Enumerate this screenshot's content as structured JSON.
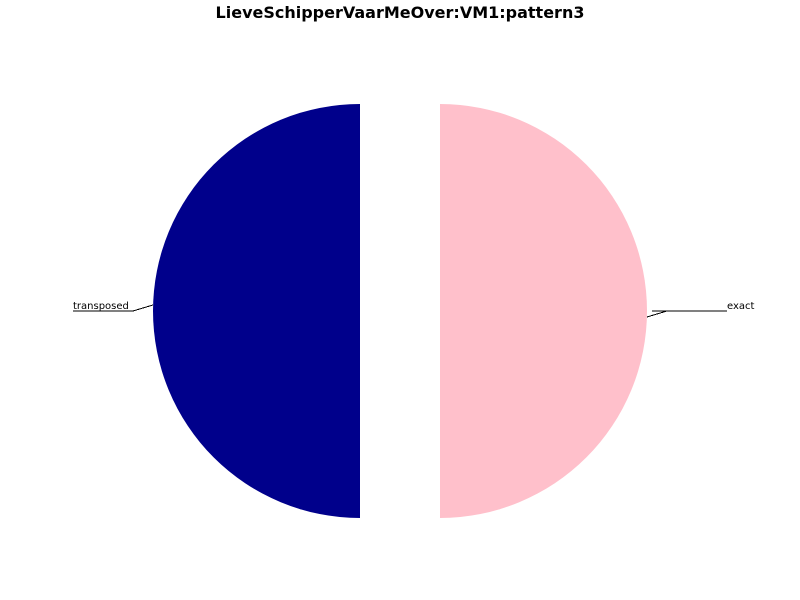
{
  "chart_data": {
    "type": "pie",
    "title": "LieveSchipperVaarMeOver:VM1:pattern3",
    "slices": [
      {
        "label": "transposed",
        "value": 1,
        "color": "#00008b"
      },
      {
        "label": "",
        "value": 0,
        "color": "#ffffff"
      },
      {
        "label": "exact",
        "value": 1,
        "color": "#ffc0cb"
      }
    ]
  }
}
